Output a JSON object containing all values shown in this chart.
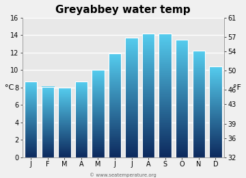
{
  "title": "Greyabbey water temp",
  "months": [
    "J",
    "F",
    "M",
    "A",
    "M",
    "J",
    "J",
    "A",
    "S",
    "O",
    "N",
    "D"
  ],
  "values_c": [
    8.7,
    8.1,
    8.0,
    8.7,
    10.0,
    11.9,
    13.7,
    14.2,
    14.2,
    13.5,
    12.2,
    10.4
  ],
  "ylim_c": [
    0,
    16
  ],
  "yticks_c": [
    0,
    2,
    4,
    6,
    8,
    10,
    12,
    14,
    16
  ],
  "yticks_f": [
    32,
    36,
    39,
    43,
    46,
    50,
    54,
    57,
    61
  ],
  "ylabel_left": "°C",
  "ylabel_right": "°F",
  "bar_color_top": "#55ccee",
  "bar_color_bottom": "#0d2a5e",
  "bg_color": "#f0f0f0",
  "plot_bg_color": "#e8e8e8",
  "watermark": "© www.seatemperature.org",
  "title_fontsize": 11,
  "tick_fontsize": 7,
  "label_fontsize": 8,
  "bar_width": 0.75
}
